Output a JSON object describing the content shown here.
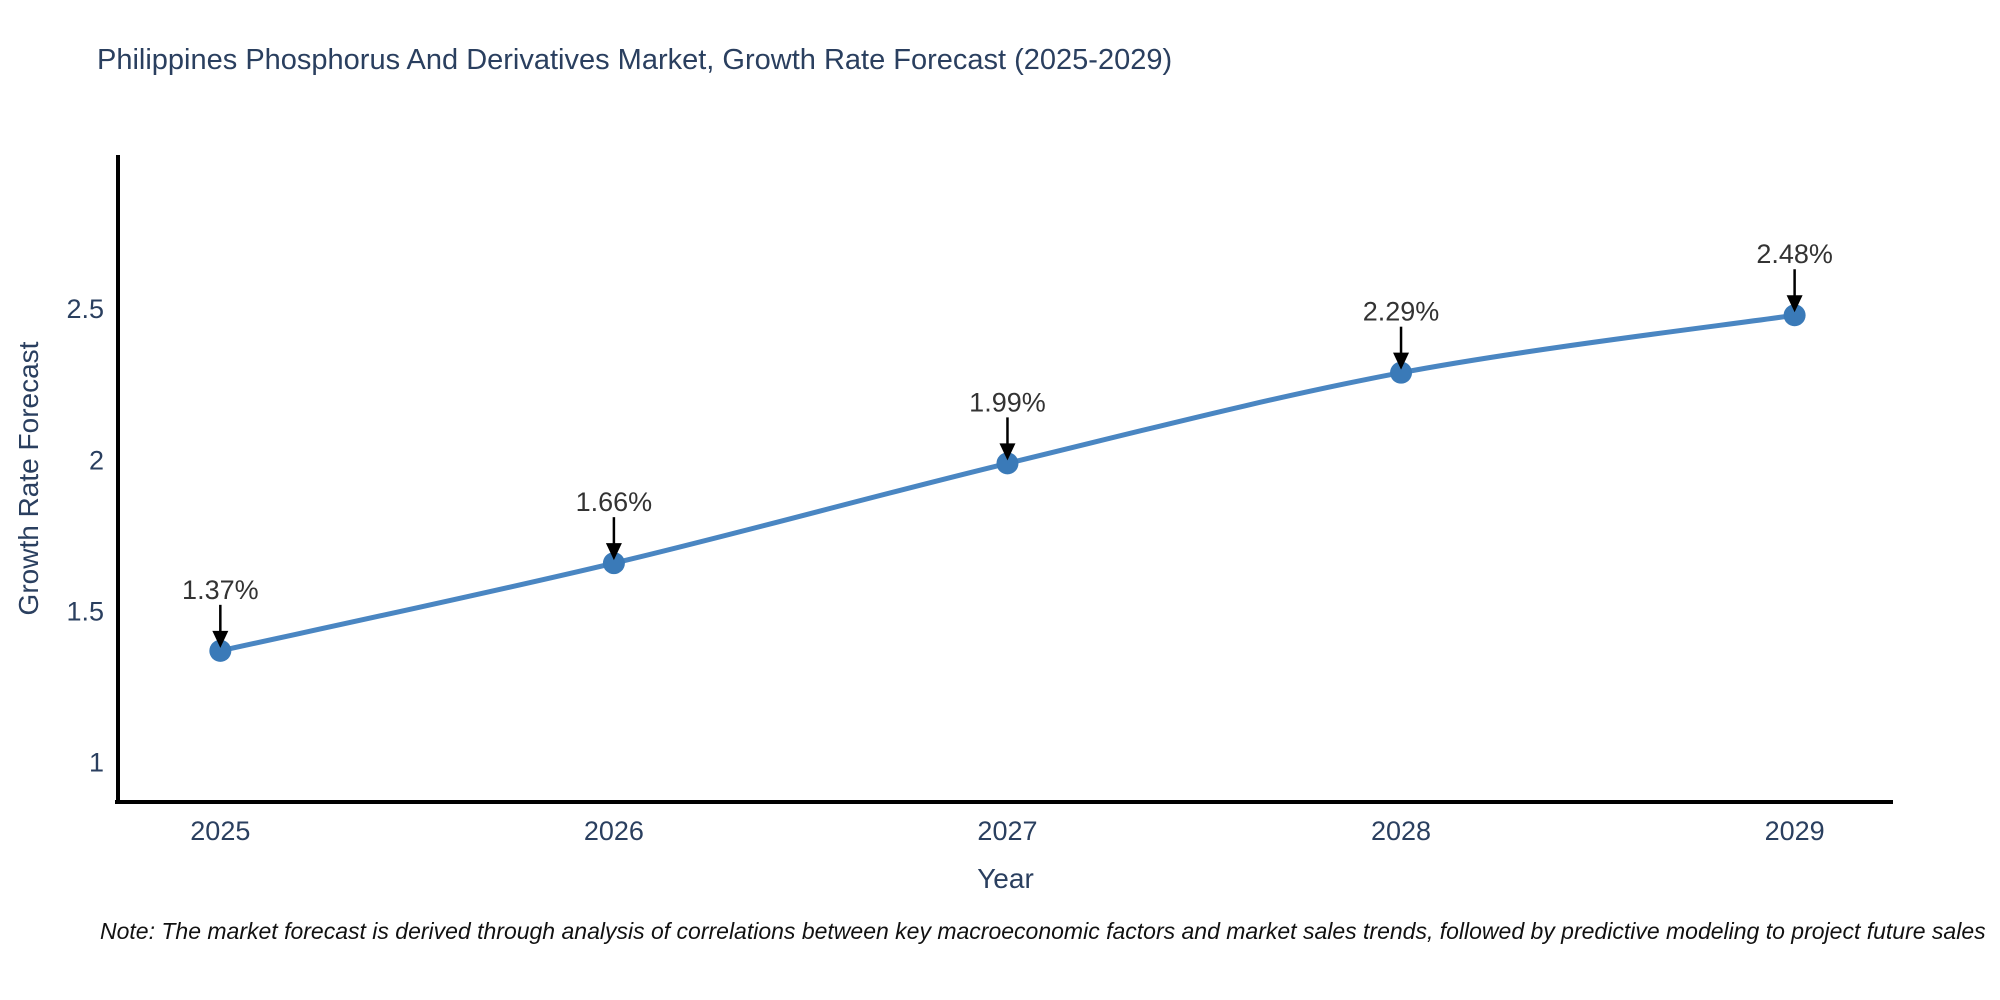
{
  "note": "Note: The market forecast is derived through analysis of correlations between key macroeconomic factors and market sales trends, followed by predictive modeling to project future sales",
  "chart_data": {
    "type": "line",
    "title": "Philippines Phosphorus And Derivatives Market, Growth Rate Forecast (2025-2029)",
    "xlabel": "Year",
    "ylabel": "Growth Rate Forecast",
    "x": [
      2025,
      2026,
      2027,
      2028,
      2029
    ],
    "values": [
      1.37,
      1.66,
      1.99,
      2.29,
      2.48
    ],
    "point_labels": [
      "1.37%",
      "1.66%",
      "1.99%",
      "2.29%",
      "2.48%"
    ],
    "xtick_labels": [
      "2025",
      "2026",
      "2027",
      "2028",
      "2029"
    ],
    "yticks": [
      1,
      1.5,
      2,
      2.5
    ],
    "ytick_labels": [
      "1",
      "1.5",
      "2",
      "2.5"
    ],
    "xlim": [
      2024.74,
      2029.25
    ],
    "ylim": [
      0.87,
      3.01
    ],
    "grid": false,
    "legend_position": "none",
    "line_shape": "spline",
    "colors": {
      "line": "#4a86c2",
      "marker": "#3a7ab8",
      "axis": "#000000",
      "tick_text": "#2a3f5f",
      "axis_label_text": "#2a3f5f",
      "title_text": "#2a3f5f",
      "annotation_text": "#333333",
      "arrow": "#000000",
      "note_text": "#111111",
      "background": "#ffffff"
    }
  }
}
